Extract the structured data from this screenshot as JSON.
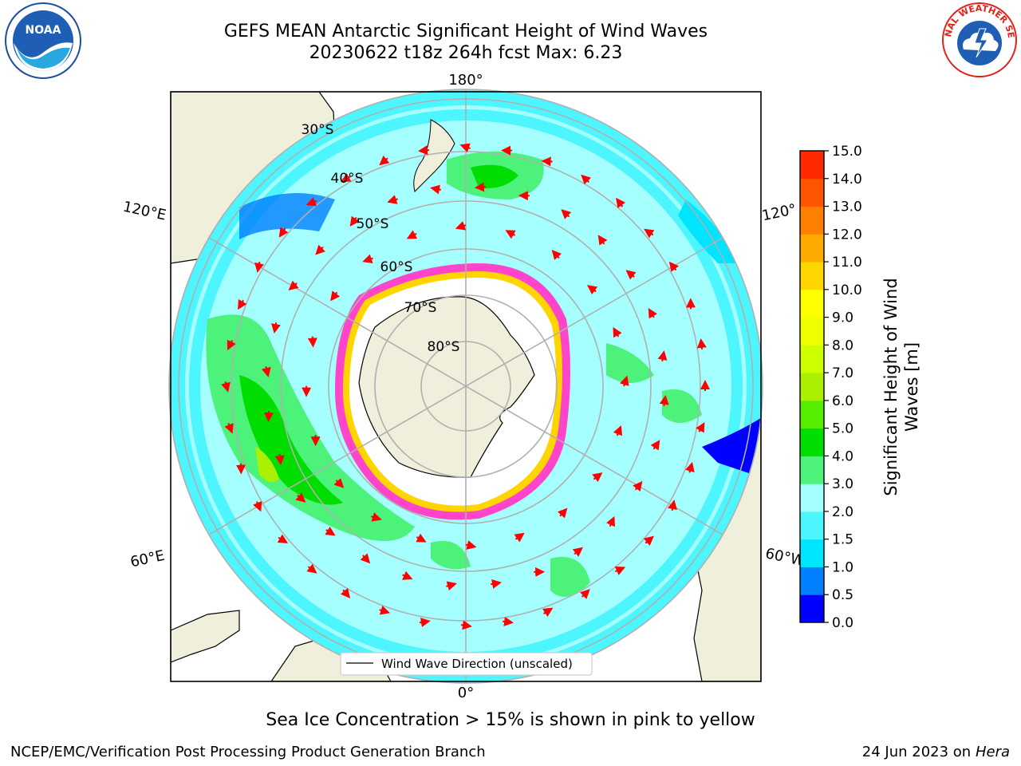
{
  "title_line1": "GEFS MEAN Antarctic Significant Height of Wind Waves",
  "title_line2": "20230622 t18z 264h fcst   Max: 6.23",
  "lon_labels": {
    "top": "180°",
    "bottom": "0°",
    "left_upper": "120°E",
    "left_lower": "60°E",
    "right_upper": "120°",
    "right_lower": "60°W"
  },
  "lat_labels": [
    "30°S",
    "40°S",
    "50°S",
    "60°S",
    "70°S",
    "80°S"
  ],
  "legend_label": "Wind Wave Direction (unscaled)",
  "colorbar": {
    "label_line1": "Significant Height of Wind",
    "label_line2": "Waves [m]",
    "ticks": [
      "0.0",
      "0.5",
      "1.0",
      "1.5",
      "2.0",
      "3.0",
      "4.0",
      "5.0",
      "6.0",
      "7.0",
      "8.0",
      "9.0",
      "10.0",
      "11.0",
      "12.0",
      "13.0",
      "14.0",
      "15.0"
    ],
    "colors": [
      "#0000ff",
      "#0080ff",
      "#00e5ff",
      "#4df5ff",
      "#a6ffff",
      "#4cf27a",
      "#00dd00",
      "#55ee00",
      "#aaf000",
      "#ccff00",
      "#eeff00",
      "#ffff00",
      "#ffd500",
      "#ffaa00",
      "#ff8000",
      "#ff5500",
      "#ff2a00"
    ]
  },
  "caption": "Sea Ice Concentration > 15% is shown in pink to yellow",
  "footer_left": "NCEP/EMC/Verification Post Processing Product Generation Branch",
  "footer_date": "24 Jun 2023 on",
  "footer_host": "Hera",
  "logo_left": "NOAA",
  "logo_right": "NATIONAL WEATHER SERVICE"
}
